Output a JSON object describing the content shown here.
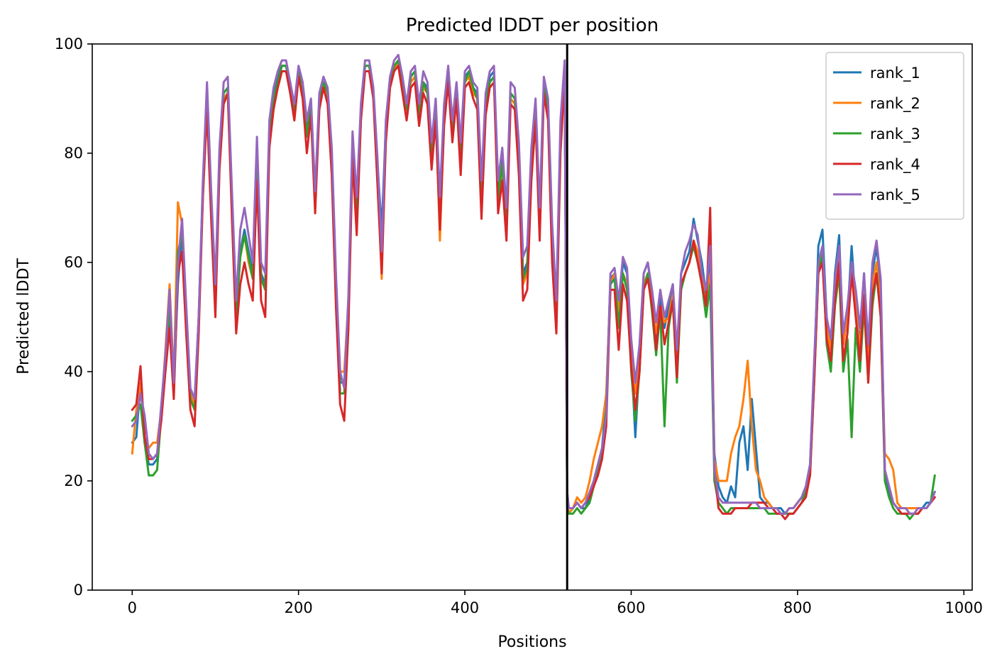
{
  "chart_data": {
    "type": "line",
    "title": "Predicted lDDT per position",
    "xlabel": "Positions",
    "ylabel": "Predicted lDDT",
    "xlim": [
      -48,
      1010
    ],
    "ylim": [
      0,
      100
    ],
    "xticks": [
      0,
      200,
      400,
      600,
      800,
      1000
    ],
    "yticks": [
      0,
      20,
      40,
      60,
      80,
      100
    ],
    "grid": false,
    "legend": "top-right",
    "vline": {
      "x": 523,
      "color": "#000000"
    },
    "x": [
      0,
      5,
      10,
      15,
      20,
      25,
      30,
      35,
      40,
      45,
      50,
      55,
      60,
      65,
      70,
      75,
      80,
      85,
      90,
      95,
      100,
      105,
      110,
      115,
      120,
      125,
      130,
      135,
      140,
      145,
      150,
      155,
      160,
      165,
      170,
      175,
      180,
      185,
      190,
      195,
      200,
      205,
      210,
      215,
      220,
      225,
      230,
      235,
      240,
      245,
      250,
      255,
      260,
      265,
      270,
      275,
      280,
      285,
      290,
      295,
      300,
      305,
      310,
      315,
      320,
      325,
      330,
      335,
      340,
      345,
      350,
      355,
      360,
      365,
      370,
      375,
      380,
      385,
      390,
      395,
      400,
      405,
      410,
      415,
      420,
      425,
      430,
      435,
      440,
      445,
      450,
      455,
      460,
      465,
      470,
      475,
      480,
      485,
      490,
      495,
      500,
      505,
      510,
      515,
      520,
      523,
      525,
      530,
      535,
      540,
      545,
      550,
      555,
      560,
      565,
      570,
      575,
      580,
      585,
      590,
      595,
      600,
      605,
      610,
      615,
      620,
      625,
      630,
      635,
      640,
      645,
      650,
      655,
      660,
      665,
      670,
      675,
      680,
      685,
      690,
      695,
      700,
      705,
      710,
      715,
      720,
      725,
      730,
      735,
      740,
      745,
      750,
      755,
      760,
      765,
      770,
      775,
      780,
      785,
      790,
      795,
      800,
      805,
      810,
      815,
      820,
      825,
      830,
      835,
      840,
      845,
      850,
      855,
      860,
      865,
      870,
      875,
      880,
      885,
      890,
      895,
      900,
      905,
      910,
      915,
      920,
      925,
      930,
      935,
      940,
      945,
      950,
      955,
      960,
      965
    ],
    "series": [
      {
        "name": "rank_1",
        "color": "#1f77b4",
        "values": [
          27,
          28,
          38,
          27,
          23,
          23,
          24,
          33,
          42,
          50,
          37,
          56,
          66,
          50,
          36,
          34,
          50,
          74,
          90,
          72,
          55,
          80,
          91,
          92,
          72,
          52,
          62,
          66,
          62,
          58,
          80,
          58,
          56,
          84,
          91,
          94,
          96,
          96,
          93,
          88,
          95,
          92,
          84,
          89,
          72,
          90,
          93,
          91,
          80,
          57,
          38,
          38,
          52,
          82,
          70,
          88,
          96,
          96,
          91,
          78,
          66,
          85,
          93,
          96,
          97,
          93,
          88,
          94,
          95,
          88,
          93,
          92,
          80,
          89,
          71,
          88,
          95,
          85,
          92,
          80,
          94,
          95,
          92,
          91,
          74,
          89,
          94,
          95,
          73,
          79,
          68,
          91,
          90,
          80,
          58,
          60,
          79,
          88,
          68,
          93,
          88,
          64,
          50,
          84,
          96,
          18,
          15,
          15,
          16,
          15,
          15,
          17,
          20,
          23,
          26,
          35,
          57,
          58,
          50,
          60,
          58,
          43,
          28,
          42,
          58,
          60,
          54,
          46,
          54,
          48,
          52,
          56,
          41,
          58,
          60,
          62,
          68,
          64,
          60,
          54,
          60,
          25,
          19,
          17,
          16,
          19,
          17,
          27,
          30,
          22,
          35,
          26,
          17,
          16,
          16,
          15,
          15,
          15,
          14,
          15,
          15,
          16,
          17,
          19,
          23,
          40,
          63,
          66,
          50,
          44,
          58,
          65,
          45,
          50,
          63,
          52,
          45,
          58,
          40,
          58,
          63,
          55,
          22,
          18,
          16,
          15,
          15,
          15,
          15,
          15,
          15,
          15,
          16,
          16,
          18
        ]
      },
      {
        "name": "rank_2",
        "color": "#ff7f0e",
        "values": [
          25,
          33,
          38,
          28,
          26,
          27,
          27,
          33,
          44,
          56,
          38,
          71,
          67,
          52,
          36,
          34,
          50,
          72,
          89,
          72,
          55,
          78,
          90,
          91,
          70,
          51,
          61,
          65,
          60,
          57,
          79,
          57,
          55,
          83,
          89,
          92,
          95,
          95,
          92,
          86,
          94,
          91,
          83,
          88,
          71,
          89,
          92,
          90,
          79,
          56,
          40,
          40,
          53,
          80,
          68,
          86,
          95,
          95,
          90,
          76,
          57,
          83,
          92,
          95,
          97,
          92,
          87,
          93,
          94,
          86,
          92,
          91,
          79,
          88,
          64,
          86,
          94,
          84,
          91,
          77,
          93,
          94,
          91,
          90,
          72,
          88,
          93,
          94,
          71,
          77,
          66,
          90,
          89,
          79,
          56,
          58,
          78,
          87,
          66,
          92,
          87,
          62,
          48,
          82,
          95,
          17,
          14,
          15,
          17,
          16,
          17,
          20,
          24,
          27,
          30,
          36,
          56,
          58,
          51,
          58,
          56,
          45,
          36,
          43,
          56,
          58,
          53,
          47,
          52,
          49,
          50,
          54,
          42,
          55,
          58,
          60,
          64,
          62,
          57,
          52,
          58,
          24,
          20,
          20,
          20,
          25,
          28,
          30,
          35,
          42,
          30,
          22,
          20,
          17,
          16,
          15,
          15,
          14,
          14,
          15,
          15,
          16,
          17,
          18,
          22,
          40,
          58,
          62,
          48,
          44,
          55,
          62,
          45,
          50,
          60,
          52,
          44,
          56,
          40,
          56,
          60,
          52,
          25,
          24,
          22,
          16,
          15,
          15,
          15,
          15,
          15,
          15,
          15,
          16,
          17
        ]
      },
      {
        "name": "rank_3",
        "color": "#2ca02c",
        "values": [
          31,
          32,
          34,
          27,
          21,
          21,
          22,
          32,
          42,
          52,
          37,
          62,
          65,
          50,
          35,
          33,
          49,
          73,
          90,
          71,
          54,
          79,
          91,
          92,
          71,
          50,
          61,
          65,
          61,
          57,
          80,
          57,
          55,
          84,
          90,
          93,
          96,
          96,
          92,
          87,
          95,
          92,
          83,
          89,
          71,
          90,
          93,
          91,
          79,
          56,
          36,
          36,
          51,
          81,
          69,
          88,
          96,
          96,
          91,
          77,
          60,
          84,
          93,
          96,
          97,
          92,
          88,
          94,
          95,
          87,
          93,
          91,
          79,
          88,
          68,
          87,
          94,
          84,
          92,
          79,
          93,
          95,
          92,
          90,
          72,
          89,
          93,
          94,
          72,
          78,
          67,
          91,
          90,
          79,
          57,
          59,
          78,
          88,
          67,
          92,
          88,
          63,
          49,
          83,
          95,
          15,
          14,
          14,
          15,
          14,
          15,
          16,
          19,
          22,
          25,
          33,
          56,
          57,
          48,
          58,
          55,
          40,
          31,
          40,
          55,
          58,
          51,
          43,
          51,
          30,
          48,
          53,
          38,
          55,
          58,
          60,
          63,
          60,
          56,
          50,
          56,
          20,
          16,
          15,
          14,
          15,
          15,
          15,
          15,
          15,
          15,
          15,
          15,
          15,
          14,
          14,
          14,
          14,
          14,
          14,
          14,
          15,
          16,
          18,
          21,
          38,
          58,
          62,
          45,
          40,
          52,
          58,
          40,
          46,
          28,
          48,
          40,
          52,
          38,
          52,
          58,
          50,
          20,
          17,
          15,
          14,
          14,
          14,
          13,
          14,
          14,
          15,
          15,
          16,
          21
        ]
      },
      {
        "name": "rank_4",
        "color": "#d62728",
        "values": [
          33,
          34,
          41,
          28,
          24,
          24,
          25,
          31,
          40,
          48,
          35,
          58,
          62,
          47,
          33,
          30,
          47,
          72,
          88,
          68,
          50,
          77,
          89,
          91,
          68,
          47,
          56,
          60,
          56,
          53,
          75,
          53,
          50,
          81,
          88,
          92,
          95,
          95,
          91,
          86,
          94,
          90,
          80,
          87,
          69,
          88,
          92,
          89,
          76,
          52,
          34,
          31,
          48,
          79,
          65,
          86,
          95,
          95,
          90,
          74,
          58,
          82,
          92,
          95,
          96,
          91,
          86,
          92,
          93,
          85,
          91,
          89,
          77,
          86,
          66,
          85,
          93,
          82,
          90,
          76,
          92,
          93,
          90,
          88,
          68,
          87,
          92,
          93,
          69,
          75,
          64,
          89,
          88,
          76,
          53,
          55,
          75,
          86,
          64,
          91,
          86,
          60,
          47,
          80,
          94,
          17,
          15,
          15,
          16,
          15,
          16,
          17,
          19,
          21,
          24,
          30,
          55,
          55,
          44,
          56,
          53,
          41,
          33,
          40,
          55,
          57,
          52,
          44,
          52,
          45,
          49,
          53,
          39,
          56,
          58,
          60,
          64,
          60,
          56,
          52,
          70,
          22,
          15,
          14,
          14,
          14,
          15,
          15,
          15,
          15,
          16,
          16,
          16,
          16,
          15,
          15,
          14,
          14,
          13,
          14,
          14,
          15,
          16,
          17,
          21,
          38,
          58,
          60,
          46,
          42,
          53,
          60,
          42,
          47,
          58,
          50,
          42,
          54,
          38,
          54,
          58,
          50,
          22,
          19,
          16,
          15,
          14,
          14,
          14,
          14,
          14,
          15,
          15,
          16,
          17
        ]
      },
      {
        "name": "rank_5",
        "color": "#9467bd",
        "values": [
          30,
          31,
          36,
          32,
          25,
          24,
          25,
          34,
          43,
          55,
          38,
          60,
          68,
          52,
          37,
          35,
          50,
          75,
          93,
          73,
          56,
          81,
          93,
          94,
          73,
          53,
          66,
          70,
          65,
          60,
          83,
          60,
          58,
          86,
          92,
          95,
          97,
          97,
          93,
          89,
          96,
          93,
          86,
          90,
          73,
          91,
          94,
          92,
          81,
          58,
          40,
          37,
          54,
          84,
          72,
          89,
          97,
          97,
          92,
          79,
          62,
          86,
          94,
          97,
          98,
          94,
          89,
          95,
          96,
          89,
          95,
          93,
          82,
          90,
          72,
          89,
          96,
          86,
          93,
          82,
          95,
          96,
          93,
          92,
          75,
          91,
          95,
          96,
          75,
          81,
          70,
          93,
          92,
          82,
          61,
          63,
          81,
          90,
          70,
          94,
          90,
          67,
          53,
          86,
          97,
          18,
          15,
          15,
          16,
          15,
          16,
          18,
          20,
          23,
          26,
          32,
          58,
          59,
          53,
          61,
          59,
          46,
          38,
          45,
          58,
          60,
          55,
          49,
          55,
          50,
          53,
          56,
          44,
          58,
          62,
          64,
          67,
          65,
          58,
          55,
          63,
          22,
          17,
          16,
          16,
          16,
          16,
          16,
          16,
          16,
          16,
          16,
          15,
          15,
          15,
          15,
          15,
          14,
          14,
          15,
          15,
          16,
          17,
          19,
          23,
          42,
          60,
          63,
          50,
          46,
          57,
          63,
          47,
          52,
          60,
          55,
          48,
          58,
          45,
          60,
          64,
          57,
          22,
          19,
          16,
          15,
          15,
          15,
          14,
          14,
          15,
          15,
          15,
          16,
          18
        ]
      }
    ]
  }
}
